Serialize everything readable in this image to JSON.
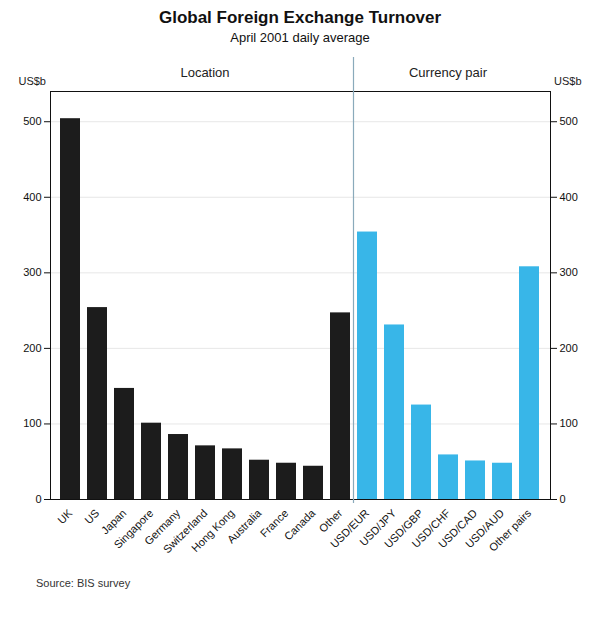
{
  "chart_data": {
    "type": "bar",
    "title": "Global Foreign Exchange Turnover",
    "subtitle": "April 2001 daily average",
    "ylabel": "US$b",
    "y2label": "US$b",
    "source": "Source: BIS survey",
    "series": [
      {
        "name": "Location",
        "color": "#1c1c1c",
        "categories": [
          "UK",
          "US",
          "Japan",
          "Singapore",
          "Germany",
          "Switzerland",
          "Hong Kong",
          "Australia",
          "France",
          "Canada",
          "Other"
        ],
        "values": [
          504,
          254,
          147,
          101,
          86,
          71,
          67,
          52,
          48,
          44,
          247
        ]
      },
      {
        "name": "Currency pair",
        "color": "#38b6e8",
        "categories": [
          "USD/EUR",
          "USD/JPY",
          "USD/GBP",
          "USD/CHF",
          "USD/CAD",
          "USD/AUD",
          "Other pairs"
        ],
        "values": [
          354,
          231,
          125,
          59,
          51,
          48,
          308
        ]
      }
    ],
    "ylim": [
      0,
      540
    ],
    "yticks": [
      0,
      100,
      200,
      300,
      400,
      500
    ],
    "y2lim": [
      0,
      540
    ],
    "y2ticks": [
      0,
      100,
      200,
      300,
      400,
      500
    ],
    "grid": true
  }
}
